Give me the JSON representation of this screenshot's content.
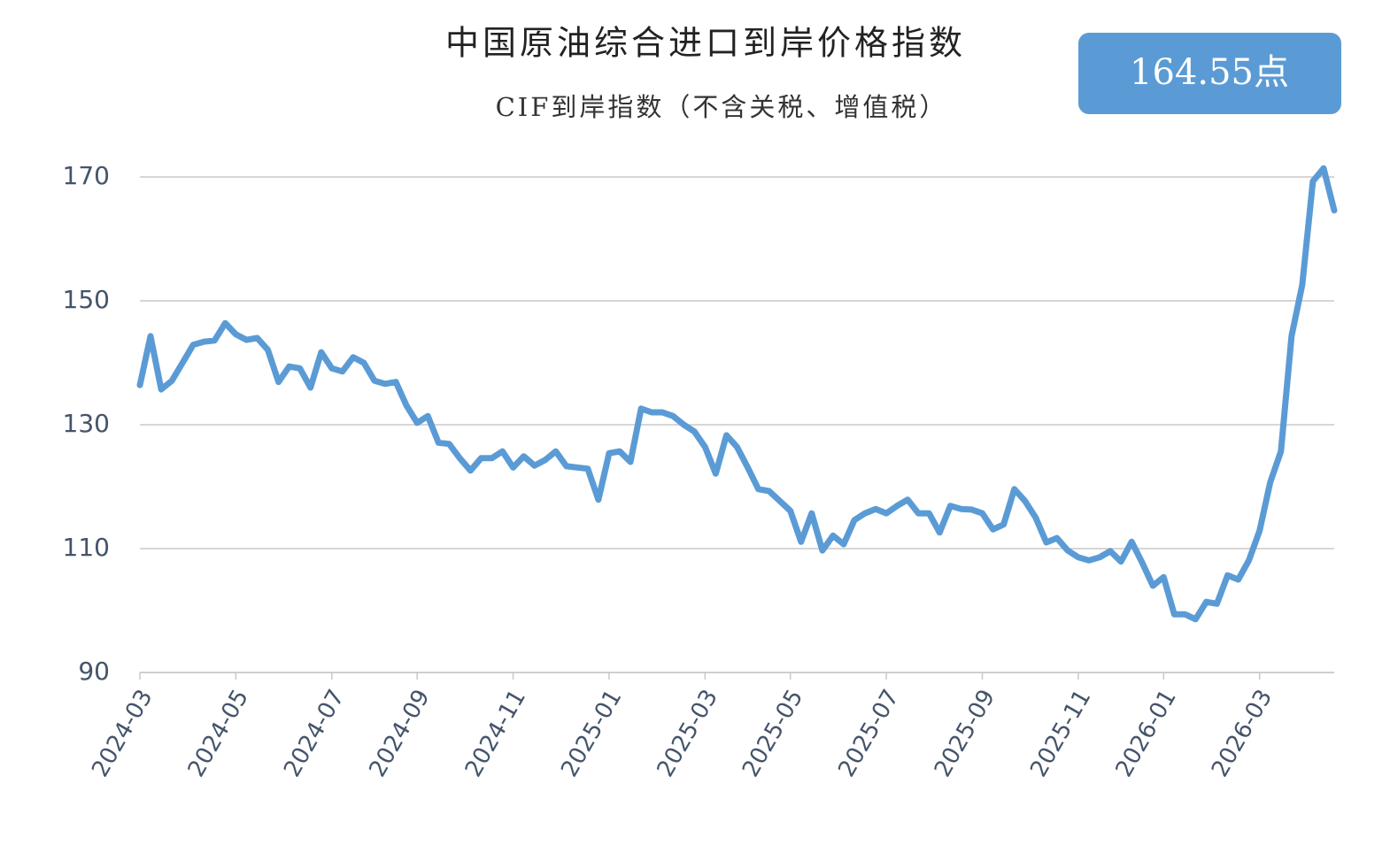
{
  "chart_data": {
    "type": "line",
    "title": "中国原油综合进口到岸价格指数",
    "subtitle": "CIF到岸指数（不含关税、增值税）",
    "badge": "164.55点",
    "categories": [
      "2024-03",
      null,
      null,
      null,
      null,
      null,
      null,
      null,
      null,
      "2024-05",
      null,
      null,
      null,
      null,
      null,
      null,
      null,
      null,
      "2024-07",
      null,
      null,
      null,
      null,
      null,
      null,
      null,
      "2024-09",
      null,
      null,
      null,
      null,
      null,
      null,
      null,
      null,
      "2024-11",
      null,
      null,
      null,
      null,
      null,
      null,
      null,
      null,
      "2025-01",
      null,
      null,
      null,
      null,
      null,
      null,
      null,
      null,
      "2025-03",
      null,
      null,
      null,
      null,
      null,
      null,
      null,
      "2025-05",
      null,
      null,
      null,
      null,
      null,
      null,
      null,
      null,
      "2025-07",
      null,
      null,
      null,
      null,
      null,
      null,
      null,
      null,
      "2025-09",
      null,
      null,
      null,
      null,
      null,
      null,
      null,
      null,
      "2025-11",
      null,
      null,
      null,
      null,
      null,
      null,
      null,
      "2026-01",
      null,
      null,
      null,
      null,
      null,
      null,
      null,
      null,
      "2026-03",
      null,
      null,
      null,
      null,
      null,
      null,
      null
    ],
    "values": [
      136.4,
      144.3,
      135.7,
      137.1,
      140,
      142.9,
      143.4,
      143.6,
      146.4,
      144.6,
      143.7,
      144,
      142.1,
      136.9,
      139.4,
      139.1,
      136,
      141.7,
      139.1,
      138.6,
      140.9,
      140,
      137.1,
      136.6,
      136.9,
      133.1,
      130.3,
      131.4,
      127.1,
      126.9,
      124.6,
      122.6,
      124.6,
      124.6,
      125.7,
      123.1,
      124.9,
      123.4,
      124.3,
      125.7,
      123.3,
      123.1,
      122.9,
      117.9,
      125.4,
      125.7,
      124,
      132.6,
      132,
      132,
      131.4,
      130,
      128.9,
      126.4,
      122.1,
      128.3,
      126.4,
      123.1,
      119.6,
      119.3,
      117.7,
      116.1,
      111.1,
      115.7,
      109.7,
      112.1,
      110.7,
      114.6,
      115.7,
      116.4,
      115.7,
      116.9,
      117.9,
      115.7,
      115.7,
      112.6,
      116.9,
      116.4,
      116.3,
      115.7,
      113.1,
      113.9,
      119.6,
      117.7,
      115,
      111,
      111.7,
      109.7,
      108.6,
      108.1,
      108.6,
      109.6,
      107.9,
      111.1,
      107.7,
      104,
      105.4,
      99.4,
      99.4,
      98.6,
      101.4,
      101.1,
      105.7,
      105,
      108.1,
      112.9,
      120.7,
      125.7,
      144.3,
      152.6,
      169.3,
      171.4,
      164.6
    ],
    "color": "#5b9bd5",
    "ylim": [
      90,
      170
    ],
    "yticks": [
      90,
      110,
      130,
      150,
      170
    ],
    "grid": true
  }
}
